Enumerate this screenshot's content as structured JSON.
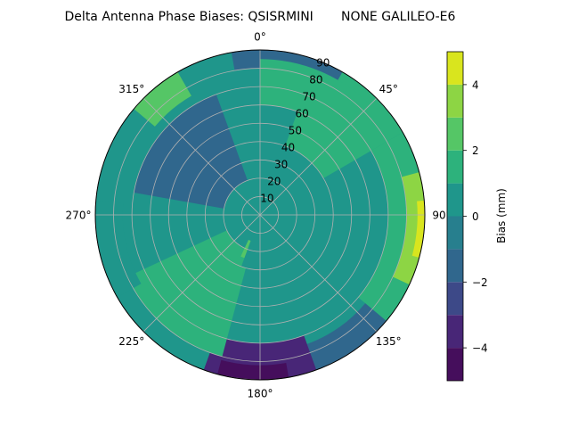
{
  "chart_data": {
    "type": "heatmap",
    "projection": "polar",
    "title": "Delta Antenna Phase Biases: QSISRMINI       NONE GALILEO-E6",
    "theta_ticks": [
      {
        "deg": 0,
        "label": "0°"
      },
      {
        "deg": 45,
        "label": "45°"
      },
      {
        "deg": 90,
        "label": "90°"
      },
      {
        "deg": 135,
        "label": "135°"
      },
      {
        "deg": 180,
        "label": "180°"
      },
      {
        "deg": 225,
        "label": "225°"
      },
      {
        "deg": 270,
        "label": "270°"
      },
      {
        "deg": 315,
        "label": "315°"
      }
    ],
    "radial_ticks": [
      {
        "r": 10,
        "label": "10"
      },
      {
        "r": 20,
        "label": "20"
      },
      {
        "r": 30,
        "label": "30"
      },
      {
        "r": 40,
        "label": "40"
      },
      {
        "r": 50,
        "label": "50"
      },
      {
        "r": 60,
        "label": "60"
      },
      {
        "r": 70,
        "label": "70"
      },
      {
        "r": 80,
        "label": "80"
      },
      {
        "r": 90,
        "label": "90"
      }
    ],
    "r_range": [
      0,
      90
    ],
    "theta_zero": "top",
    "theta_direction": "clockwise",
    "grid": true,
    "colorbar": {
      "label": "Bias (mm)",
      "range": [
        -5,
        5
      ],
      "levels": [
        -5,
        -4,
        -3,
        -2,
        -1,
        0,
        1,
        2,
        3,
        4,
        5
      ],
      "colors": [
        "#450e5c",
        "#482677",
        "#3d4988",
        "#30678d",
        "#277f8e",
        "#1f968b",
        "#2db27c",
        "#55c666",
        "#8dd544",
        "#d9e51e"
      ],
      "ticks": [
        {
          "v": -4,
          "label": "−4"
        },
        {
          "v": -2,
          "label": "−2"
        },
        {
          "v": 0,
          "label": "0"
        },
        {
          "v": 2,
          "label": "2"
        },
        {
          "v": 4,
          "label": "4"
        }
      ],
      "placement": "right"
    },
    "regions": [
      {
        "r0": 0,
        "r1": 90,
        "t0": 0,
        "t1": 360,
        "value": 0.4
      },
      {
        "r0": 40,
        "r1": 90,
        "t0": 20,
        "t1": 60,
        "value": 1.3
      },
      {
        "r0": 70,
        "r1": 90,
        "t0": 60,
        "t1": 130,
        "value": 1.5
      },
      {
        "r0": 80,
        "r1": 90,
        "t0": 75,
        "t1": 115,
        "value": 3.3
      },
      {
        "r0": 86,
        "r1": 90,
        "t0": 85,
        "t1": 105,
        "value": 4.5
      },
      {
        "r0": 75,
        "r1": 90,
        "t0": 130,
        "t1": 160,
        "value": -1.5
      },
      {
        "r0": 70,
        "r1": 90,
        "t0": 160,
        "t1": 200,
        "value": -3.2
      },
      {
        "r0": 82,
        "r1": 90,
        "t0": 170,
        "t1": 195,
        "value": -4.3
      },
      {
        "r0": 20,
        "r1": 80,
        "t0": 195,
        "t1": 245,
        "value": 1.3
      },
      {
        "r0": 15,
        "r1": 25,
        "t0": 190,
        "t1": 205,
        "value": 2.3
      },
      {
        "r0": 20,
        "r1": 70,
        "t0": 280,
        "t1": 340,
        "value": -1.3
      },
      {
        "r0": 10,
        "r1": 30,
        "t0": 150,
        "t1": 200,
        "value": 0.4
      },
      {
        "r0": 75,
        "r1": 90,
        "t0": 310,
        "t1": 330,
        "value": 2.3
      },
      {
        "r0": 80,
        "r1": 90,
        "t0": 350,
        "t1": 360,
        "value": -1.4
      },
      {
        "r0": 80,
        "r1": 90,
        "t0": 0,
        "t1": 30,
        "value": -1.4
      },
      {
        "r0": 60,
        "r1": 85,
        "t0": 0,
        "t1": 45,
        "value": 1.2
      },
      {
        "r0": 75,
        "r1": 90,
        "t0": 240,
        "t1": 275,
        "value": 0.4
      }
    ]
  }
}
